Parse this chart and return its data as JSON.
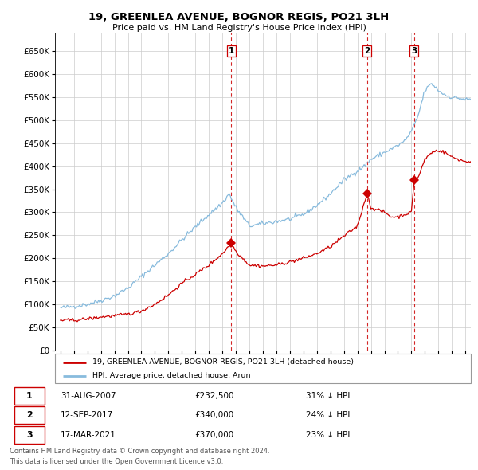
{
  "title": "19, GREENLEA AVENUE, BOGNOR REGIS, PO21 3LH",
  "subtitle": "Price paid vs. HM Land Registry's House Price Index (HPI)",
  "ytick_vals": [
    0,
    50000,
    100000,
    150000,
    200000,
    250000,
    300000,
    350000,
    400000,
    450000,
    500000,
    550000,
    600000,
    650000
  ],
  "ylim": [
    0,
    690000
  ],
  "transaction_dates_float": [
    2007.665,
    2017.703,
    2021.205
  ],
  "transaction_prices": [
    232500,
    340000,
    370000
  ],
  "transaction_labels": [
    "1",
    "2",
    "3"
  ],
  "transaction_hpi_pct": [
    "31% ↓ HPI",
    "24% ↓ HPI",
    "23% ↓ HPI"
  ],
  "transaction_date_labels": [
    "31-AUG-2007",
    "12-SEP-2017",
    "17-MAR-2021"
  ],
  "legend_label_red": "19, GREENLEA AVENUE, BOGNOR REGIS, PO21 3LH (detached house)",
  "legend_label_blue": "HPI: Average price, detached house, Arun",
  "footer_line1": "Contains HM Land Registry data © Crown copyright and database right 2024.",
  "footer_line2": "This data is licensed under the Open Government Licence v3.0.",
  "red_color": "#cc0000",
  "blue_color": "#88bbdd",
  "vline_color": "#cc0000",
  "grid_color": "#cccccc",
  "xlim_left": 1994.6,
  "xlim_right": 2025.4,
  "hpi_knots_t": [
    1995,
    1996,
    1997,
    1998,
    1999,
    2000,
    2001,
    2002,
    2003,
    2004,
    2005,
    2006,
    2007,
    2007.5,
    2008,
    2009,
    2010,
    2011,
    2012,
    2013,
    2014,
    2015,
    2016,
    2017,
    2017.5,
    2018,
    2019,
    2020,
    2020.5,
    2021,
    2021.5,
    2022,
    2022.5,
    2023,
    2023.5,
    2024,
    2024.5,
    2025
  ],
  "hpi_knots_v": [
    92000,
    95000,
    100000,
    108000,
    118000,
    135000,
    160000,
    185000,
    210000,
    240000,
    268000,
    295000,
    320000,
    340000,
    310000,
    270000,
    275000,
    280000,
    285000,
    295000,
    315000,
    340000,
    370000,
    390000,
    400000,
    415000,
    430000,
    445000,
    455000,
    475000,
    510000,
    565000,
    580000,
    565000,
    555000,
    550000,
    548000,
    545000
  ],
  "red_knots_t": [
    1995,
    1996,
    1997,
    1998,
    1999,
    2000,
    2001,
    2002,
    2003,
    2004,
    2005,
    2006,
    2007,
    2007.665,
    2008,
    2009,
    2010,
    2011,
    2012,
    2013,
    2014,
    2015,
    2016,
    2017,
    2017.703,
    2018,
    2019,
    2019.5,
    2020,
    2020.5,
    2021,
    2021.205,
    2021.5,
    2022,
    2022.5,
    2023,
    2023.5,
    2024,
    2024.5,
    2025
  ],
  "red_knots_v": [
    65000,
    65000,
    68000,
    72000,
    75000,
    78000,
    85000,
    100000,
    120000,
    145000,
    165000,
    185000,
    210000,
    232500,
    215000,
    185000,
    183000,
    185000,
    192000,
    200000,
    210000,
    225000,
    248000,
    270000,
    340000,
    310000,
    300000,
    290000,
    290000,
    295000,
    300000,
    370000,
    375000,
    415000,
    430000,
    435000,
    430000,
    420000,
    415000,
    410000
  ],
  "noise_seed": 42,
  "noise_hpi": 2500,
  "noise_red": 1800
}
